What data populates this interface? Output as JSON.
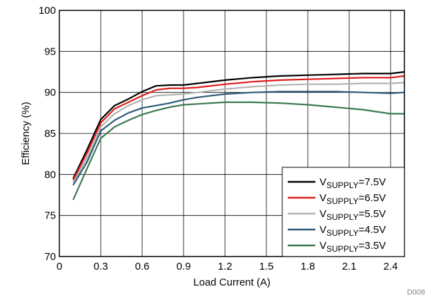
{
  "chart_data": {
    "type": "line",
    "title": "",
    "xlabel": "Load Current (A)",
    "ylabel": "Efficiency (%)",
    "xlim": [
      0,
      2.5
    ],
    "ylim": [
      70,
      100
    ],
    "x_ticks": [
      0,
      0.3,
      0.6,
      0.9,
      1.2,
      1.5,
      1.8,
      2.1,
      2.4
    ],
    "x_tick_labels": [
      "0",
      "0.3",
      "0.6",
      "0.9",
      "1.2",
      "1.5",
      "1.8",
      "2.1",
      "2.4"
    ],
    "y_ticks": [
      70,
      75,
      80,
      85,
      90,
      95,
      100
    ],
    "y_tick_labels": [
      "70",
      "75",
      "80",
      "85",
      "90",
      "95",
      "100"
    ],
    "grid": true,
    "legend_position": "bottom-right",
    "figure_code": "D008",
    "series": [
      {
        "name": "VSUPPLY=7.5V",
        "legend_main": "V",
        "legend_sub": "SUPPLY",
        "legend_value": "=7.5V",
        "color": "#000000",
        "x": [
          0.1,
          0.2,
          0.3,
          0.4,
          0.5,
          0.6,
          0.7,
          0.8,
          0.9,
          1.0,
          1.2,
          1.4,
          1.6,
          1.8,
          2.0,
          2.2,
          2.4,
          2.5
        ],
        "y": [
          79.5,
          83.0,
          86.7,
          88.4,
          89.2,
          90.1,
          90.8,
          90.9,
          90.9,
          91.1,
          91.5,
          91.8,
          92.0,
          92.1,
          92.2,
          92.3,
          92.3,
          92.5
        ]
      },
      {
        "name": "VSUPPLY=6.5V",
        "legend_main": "V",
        "legend_sub": "SUPPLY",
        "legend_value": "=6.5V",
        "color": "#e01b1b",
        "x": [
          0.1,
          0.2,
          0.3,
          0.4,
          0.5,
          0.6,
          0.7,
          0.8,
          0.9,
          1.0,
          1.2,
          1.4,
          1.6,
          1.8,
          2.0,
          2.2,
          2.4,
          2.5
        ],
        "y": [
          79.3,
          82.6,
          86.3,
          88.0,
          88.8,
          89.6,
          90.3,
          90.5,
          90.5,
          90.6,
          91.0,
          91.3,
          91.5,
          91.6,
          91.7,
          91.8,
          91.8,
          92.0
        ]
      },
      {
        "name": "VSUPPLY=5.5V",
        "legend_main": "V",
        "legend_sub": "SUPPLY",
        "legend_value": "=5.5V",
        "color": "#b3b3b3",
        "x": [
          0.1,
          0.2,
          0.3,
          0.4,
          0.5,
          0.6,
          0.7,
          0.8,
          0.9,
          1.0,
          1.2,
          1.4,
          1.6,
          1.8,
          2.0,
          2.2,
          2.4,
          2.5
        ],
        "y": [
          79.0,
          82.0,
          85.8,
          87.4,
          88.4,
          89.1,
          89.6,
          89.7,
          89.8,
          90.0,
          90.4,
          90.7,
          90.9,
          91.0,
          91.0,
          91.1,
          91.1,
          91.2
        ]
      },
      {
        "name": "VSUPPLY=4.5V",
        "legend_main": "V",
        "legend_sub": "SUPPLY",
        "legend_value": "=4.5V",
        "color": "#2e5a78",
        "x": [
          0.1,
          0.2,
          0.3,
          0.4,
          0.5,
          0.6,
          0.7,
          0.8,
          0.9,
          1.0,
          1.2,
          1.4,
          1.6,
          1.8,
          2.0,
          2.2,
          2.4,
          2.5
        ],
        "y": [
          78.7,
          81.5,
          85.3,
          86.6,
          87.5,
          88.1,
          88.4,
          88.7,
          89.1,
          89.4,
          89.8,
          90.0,
          90.1,
          90.1,
          90.1,
          90.0,
          89.9,
          90.0
        ]
      },
      {
        "name": "VSUPPLY=3.5V",
        "legend_main": "V",
        "legend_sub": "SUPPLY",
        "legend_value": "=3.5V",
        "color": "#3c7a50",
        "x": [
          0.1,
          0.2,
          0.3,
          0.4,
          0.5,
          0.6,
          0.7,
          0.8,
          0.9,
          1.0,
          1.2,
          1.4,
          1.6,
          1.8,
          2.0,
          2.2,
          2.4,
          2.5
        ],
        "y": [
          76.9,
          80.7,
          84.4,
          85.8,
          86.6,
          87.3,
          87.8,
          88.2,
          88.5,
          88.6,
          88.8,
          88.8,
          88.7,
          88.5,
          88.2,
          87.9,
          87.4,
          87.4
        ]
      }
    ]
  }
}
